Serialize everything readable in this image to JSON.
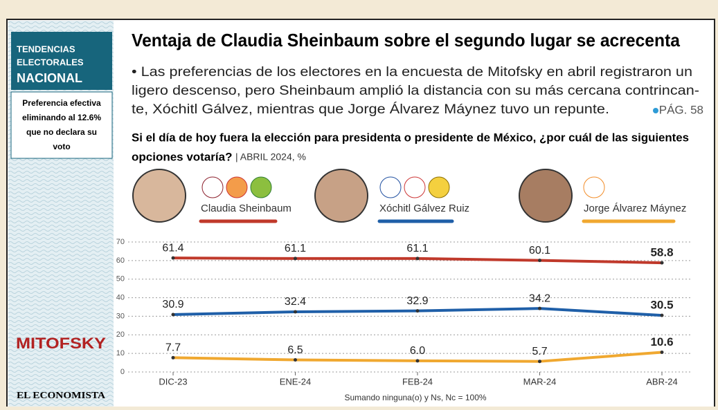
{
  "sidebar": {
    "heading": [
      "TENDENCIAS",
      "ELECTORALES",
      "NACIONAL"
    ],
    "note": [
      "Preferencia efectiva",
      "eliminando al 12.6%",
      "que no declara su",
      "voto"
    ],
    "logos": [
      "MITOFSKY",
      "EL ECONOMISTA"
    ]
  },
  "chart_data": {
    "type": "line",
    "title": "Ventaja de Claudia Sheinbaum sobre el segundo lugar se acrecenta",
    "summary": [
      "• Las preferencias de los electores en la encuesta de Mitofsky en abril registraron un",
      "ligero descenso, pero Sheinbaum amplió la distancia con su más cercana contrincan-",
      "te, Xóchitl Gálvez, mientras que Jorge Álvarez Máynez tuvo un repunte."
    ],
    "page_ref": "PÁG. 58",
    "subtitle": [
      "Si el día de hoy fuera la elección para presidenta o presidente de México, ¿por cuál de las siguientes",
      "opciones votaría?"
    ],
    "subtitle_note": "| ABRIL 2024, %",
    "categories": [
      "DIC-23",
      "ENE-24",
      "FEB-24",
      "MAR-24",
      "ABR-24"
    ],
    "series": [
      {
        "name": "Claudia Sheinbaum",
        "color": "#c0392b",
        "values": [
          61.4,
          61.1,
          61.1,
          60.1,
          58.8
        ]
      },
      {
        "name": "Xóchitl Gálvez Ruiz",
        "color": "#1f5fa8",
        "values": [
          30.9,
          32.4,
          32.9,
          34.2,
          30.5
        ]
      },
      {
        "name": "Jorge Álvarez Máynez",
        "color": "#f0a830",
        "values": [
          7.7,
          6.5,
          6.0,
          5.7,
          10.6
        ],
        "value_labels": [
          "7.7",
          "6.5",
          "6.0",
          "5.7",
          "10.6"
        ]
      }
    ],
    "ylim": [
      0,
      70
    ],
    "yticks": [
      0,
      10,
      20,
      30,
      40,
      50,
      60,
      70
    ],
    "grid": true,
    "note": "Sumando ninguna(o) y Ns, Nc = 100%"
  }
}
